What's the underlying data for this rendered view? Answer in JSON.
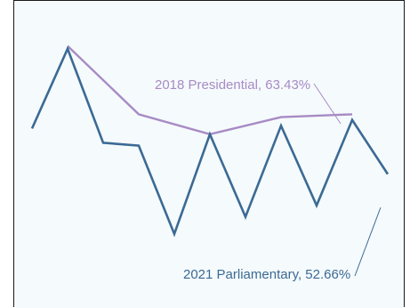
{
  "colors": {
    "background": "#f5fafc",
    "frame": "#1a1a1a"
  },
  "chart_data": {
    "type": "line",
    "title": "",
    "xlabel": "",
    "ylabel": "",
    "grid": false,
    "legend": "none",
    "x": [
      0,
      1,
      2,
      3,
      4,
      5,
      6,
      7,
      8,
      9,
      10
    ],
    "ylim": [
      0,
      100
    ],
    "series": [
      {
        "name": "2021 Parliamentary",
        "color": "#3b6a94",
        "values": [
          58,
          86,
          53,
          52,
          21,
          56,
          27,
          59,
          31,
          61,
          42
        ]
      },
      {
        "name": "2018 Presidential",
        "color": "#a78bc4",
        "values": [
          null,
          87,
          null,
          63,
          null,
          56,
          null,
          62,
          null,
          63,
          null
        ]
      }
    ],
    "annotations": [
      {
        "series": 0,
        "text": "2021 Parliamentary, 52.66%"
      },
      {
        "series": 1,
        "text": "2018 Presidential, 63.43%"
      }
    ]
  }
}
